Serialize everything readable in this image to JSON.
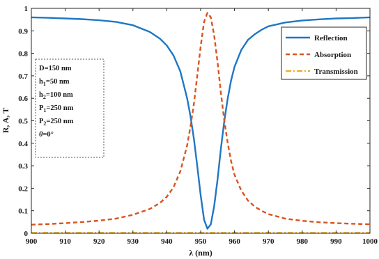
{
  "chart_data": {
    "type": "line",
    "xlabel": "λ (nm)",
    "ylabel": "R, A, T",
    "xlim": [
      900,
      1000
    ],
    "ylim": [
      0,
      1
    ],
    "xticks": [
      900,
      910,
      920,
      930,
      940,
      950,
      960,
      970,
      980,
      990,
      1000
    ],
    "yticks": [
      0,
      0.1,
      0.2,
      0.3,
      0.4,
      0.5,
      0.6,
      0.7,
      0.8,
      0.9,
      1
    ],
    "ytick_labels": [
      "0",
      "0.1",
      "0.2",
      "0.3",
      "0.4",
      "0.5",
      "0.6",
      "0.7",
      "0.8",
      "0.9",
      "1"
    ],
    "grid": false,
    "legend_position": "top-right",
    "series": [
      {
        "name": "Reflection",
        "color": "#1f77c4",
        "style": "solid",
        "x": [
          900,
          905,
          910,
          915,
          920,
          925,
          930,
          935,
          938,
          940,
          942,
          944,
          946,
          947,
          948,
          949,
          950,
          951,
          952,
          953,
          954,
          955,
          956,
          957,
          958,
          959,
          960,
          962,
          964,
          966,
          968,
          970,
          975,
          980,
          985,
          990,
          995,
          1000
        ],
        "values": [
          0.96,
          0.958,
          0.955,
          0.952,
          0.947,
          0.94,
          0.925,
          0.895,
          0.865,
          0.835,
          0.79,
          0.72,
          0.6,
          0.52,
          0.42,
          0.3,
          0.17,
          0.06,
          0.02,
          0.04,
          0.12,
          0.24,
          0.38,
          0.5,
          0.6,
          0.68,
          0.74,
          0.815,
          0.86,
          0.885,
          0.905,
          0.92,
          0.937,
          0.946,
          0.951,
          0.955,
          0.957,
          0.96
        ]
      },
      {
        "name": "Absorption",
        "color": "#d9541e",
        "style": "dashed",
        "x": [
          900,
          905,
          910,
          915,
          920,
          925,
          930,
          935,
          938,
          940,
          942,
          944,
          946,
          947,
          948,
          949,
          950,
          951,
          952,
          953,
          954,
          955,
          956,
          957,
          958,
          959,
          960,
          962,
          964,
          966,
          968,
          970,
          975,
          980,
          985,
          990,
          995,
          1000
        ],
        "values": [
          0.038,
          0.041,
          0.045,
          0.05,
          0.056,
          0.065,
          0.082,
          0.108,
          0.135,
          0.162,
          0.205,
          0.275,
          0.39,
          0.475,
          0.575,
          0.7,
          0.83,
          0.94,
          0.98,
          0.96,
          0.88,
          0.76,
          0.62,
          0.5,
          0.4,
          0.32,
          0.26,
          0.19,
          0.145,
          0.118,
          0.1,
          0.085,
          0.065,
          0.055,
          0.049,
          0.045,
          0.042,
          0.04
        ]
      },
      {
        "name": "Transmission",
        "color": "#edb120",
        "style": "dashdot",
        "x": [
          900,
          1000
        ],
        "values": [
          0.002,
          0.002
        ]
      }
    ],
    "annotation_lines": [
      "D=150 nm",
      "h1=50 nm",
      "h2=100 nm",
      "P1=250 nm",
      "P2=250 nm",
      "θ=0°"
    ]
  }
}
